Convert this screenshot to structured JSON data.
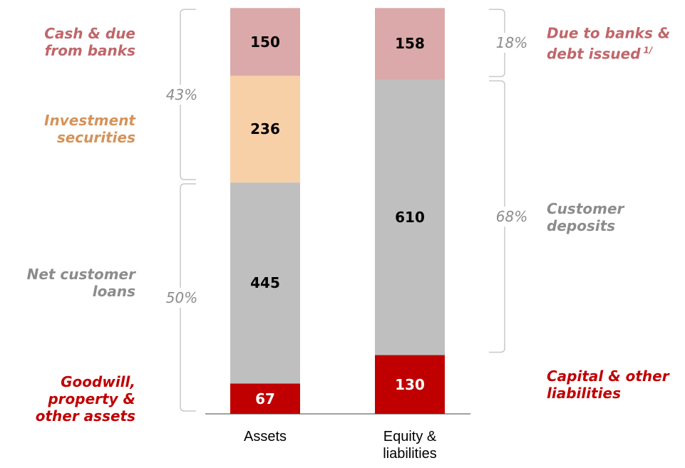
{
  "chart_data": {
    "type": "stacked-bar",
    "categories": [
      "Assets",
      "Equity & liabilities"
    ],
    "ylim": [
      0,
      900
    ],
    "series": [
      {
        "name": "Goodwill, property & other assets",
        "color": "#c00000",
        "label_color": "#c00000",
        "values": [
          67,
          null
        ]
      },
      {
        "name": "Capital & other liabilities",
        "color": "#c00000",
        "label_color": "#c00000",
        "values": [
          null,
          130
        ]
      },
      {
        "name": "Net customer loans",
        "color": "#bfbfbf",
        "label_color": "#8c8c8c",
        "values": [
          445,
          null
        ]
      },
      {
        "name": "Customer deposits",
        "color": "#bfbfbf",
        "label_color": "#8c8c8c",
        "values": [
          null,
          610
        ]
      },
      {
        "name": "Investment securities",
        "color": "#f8d0a8",
        "label_color": "#d4935a",
        "values": [
          236,
          null
        ]
      },
      {
        "name": "Cash & due from banks",
        "color": "#dba9a9",
        "label_color": "#c0666a",
        "values": [
          150,
          null
        ]
      },
      {
        "name": "Due to banks & debt issued",
        "color": "#dba9a9",
        "label_color": "#c0666a",
        "values": [
          null,
          158
        ],
        "footnote": "1/"
      }
    ],
    "shares": {
      "values": [
        43,
        50,
        18,
        68
      ],
      "value_labels": [
        "43%",
        "50%",
        "18%",
        "68%"
      ]
    }
  }
}
